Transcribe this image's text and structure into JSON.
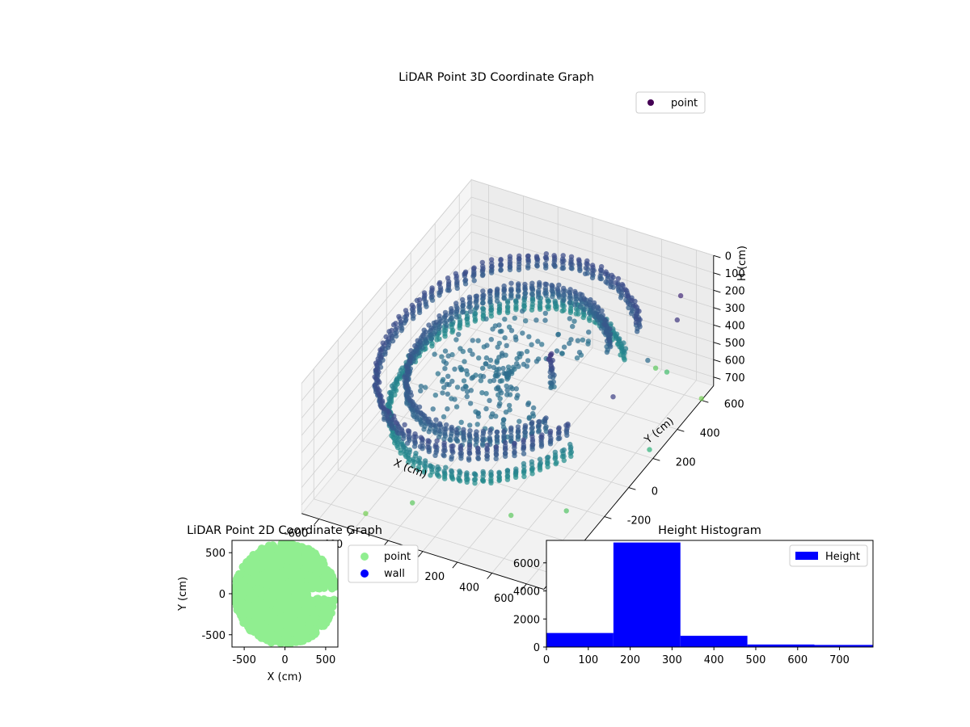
{
  "figure": {
    "background": "#ffffff"
  },
  "chart_data": [
    {
      "type": "scatter",
      "title": "LiDAR Point 3D Coordinate Graph",
      "xlabel": "X (cm)",
      "ylabel": "Y (cm)",
      "zlabel": "H (cm)",
      "xlim": [
        -700,
        700
      ],
      "ylim": [
        -700,
        700
      ],
      "zlim": [
        0,
        750
      ],
      "z_inverted": true,
      "x_ticks": [
        -600,
        -400,
        -200,
        0,
        200,
        400,
        600
      ],
      "y_ticks": [
        -600,
        -400,
        -200,
        0,
        200,
        400,
        600
      ],
      "z_ticks": [
        0,
        100,
        200,
        300,
        400,
        500,
        600,
        700
      ],
      "colormap": "viridis",
      "legend": {
        "entries": [
          "point"
        ],
        "placement": "top-right",
        "marker_color": "#440154"
      },
      "grid": true,
      "series": [
        {
          "name": "point",
          "rings": [
            {
              "radius": 620,
              "h_top": 180,
              "h_bottom": 260,
              "theta_start": 40,
              "theta_end": 335
            },
            {
              "radius": 480,
              "h_top": 220,
              "h_bottom": 300,
              "theta_start": 35,
              "theta_end": 330
            },
            {
              "radius": 560,
              "h_top": 380,
              "h_bottom": 450,
              "theta_start": 45,
              "theta_end": 340
            }
          ],
          "column": {
            "x": 250,
            "y": 0,
            "h_top": 120,
            "h_bottom": 320
          },
          "outliers": [
            [
              700,
              400,
              120
            ],
            [
              650,
              500,
              80
            ],
            [
              680,
              -100,
              150
            ],
            [
              600,
              300,
              300
            ],
            [
              750,
              100,
              600
            ],
            [
              500,
              600,
              650
            ],
            [
              300,
              -400,
              700
            ],
            [
              -200,
              -500,
              700
            ],
            [
              100,
              -650,
              720
            ],
            [
              -400,
              -600,
              740
            ],
            [
              400,
              650,
              700
            ],
            [
              650,
              -500,
              720
            ],
            [
              -100,
              -700,
              730
            ],
            [
              200,
              -700,
              740
            ],
            [
              550,
              -300,
              680
            ],
            [
              700,
              600,
              740
            ]
          ]
        }
      ]
    },
    {
      "type": "scatter",
      "title": "LiDAR Point 2D Coordinate Graph",
      "xlabel": "X (cm)",
      "ylabel": "Y (cm)",
      "xlim": [
        -650,
        650
      ],
      "ylim": [
        -650,
        650
      ],
      "x_ticks": [
        -500,
        0,
        500
      ],
      "y_ticks": [
        -500,
        0,
        500
      ],
      "legend": {
        "placement": "outside-right"
      },
      "series": [
        {
          "name": "point",
          "color": "#90ee90",
          "shape": "disk",
          "radius": 620,
          "cutout": {
            "x_from": 280,
            "y_from": -60,
            "y_to": 60
          }
        },
        {
          "name": "wall",
          "color": "#0000ff",
          "values": []
        }
      ]
    },
    {
      "type": "bar",
      "title": "Height Histogram",
      "xlim": [
        0,
        780
      ],
      "ylim": [
        0,
        7600
      ],
      "x_ticks": [
        0,
        100,
        200,
        300,
        400,
        500,
        600,
        700
      ],
      "y_ticks": [
        0,
        2000,
        4000,
        6000
      ],
      "legend": {
        "entries": [
          "Height"
        ],
        "placement": "top-right"
      },
      "series": [
        {
          "name": "Height",
          "color": "#0000ff",
          "bins": [
            {
              "from": 0,
              "to": 160,
              "count": 1000
            },
            {
              "from": 160,
              "to": 320,
              "count": 7450
            },
            {
              "from": 320,
              "to": 480,
              "count": 800
            },
            {
              "from": 480,
              "to": 640,
              "count": 180
            },
            {
              "from": 640,
              "to": 800,
              "count": 150
            }
          ]
        }
      ]
    }
  ]
}
